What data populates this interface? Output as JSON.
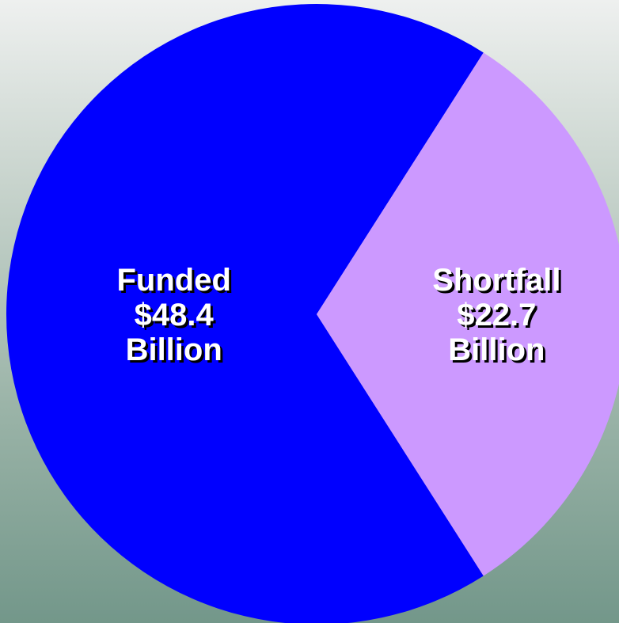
{
  "chart_data": {
    "type": "pie",
    "title": "",
    "slices": [
      {
        "label": "Funded",
        "value": 48.4,
        "label_lines": [
          "Funded",
          "$48.4",
          "Billion"
        ],
        "color": "#0000ff"
      },
      {
        "label": "Shortfall",
        "value": 22.7,
        "label_lines": [
          "Shortfall",
          "$22.7",
          "Billion"
        ],
        "color": "#cc99ff"
      }
    ],
    "legend": "none",
    "label_color": "#ffffff",
    "label_shadow_color": "#000000"
  }
}
